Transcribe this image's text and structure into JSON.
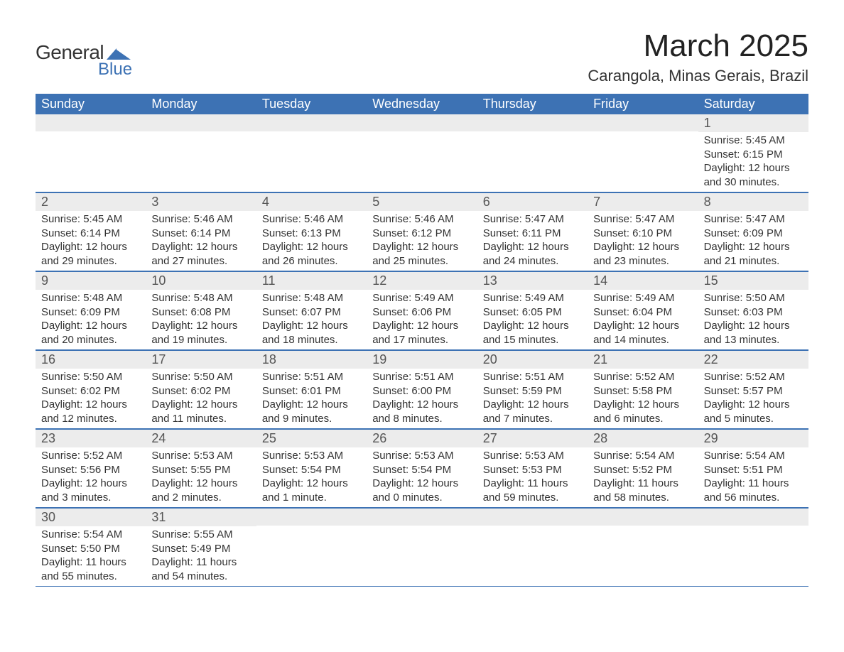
{
  "logo": {
    "main": "General",
    "sub": "Blue",
    "shape_color": "#3d72b4"
  },
  "month_title": "March 2025",
  "location": "Carangola, Minas Gerais, Brazil",
  "header_bg": "#3d72b4",
  "header_fg": "#ffffff",
  "daynum_bg": "#ececec",
  "border_color": "#3d72b4",
  "text_color": "#333333",
  "dow": [
    "Sunday",
    "Monday",
    "Tuesday",
    "Wednesday",
    "Thursday",
    "Friday",
    "Saturday"
  ],
  "weeks": [
    [
      {
        "day": "",
        "sunrise": "",
        "sunset": "",
        "daylight1": "",
        "daylight2": ""
      },
      {
        "day": "",
        "sunrise": "",
        "sunset": "",
        "daylight1": "",
        "daylight2": ""
      },
      {
        "day": "",
        "sunrise": "",
        "sunset": "",
        "daylight1": "",
        "daylight2": ""
      },
      {
        "day": "",
        "sunrise": "",
        "sunset": "",
        "daylight1": "",
        "daylight2": ""
      },
      {
        "day": "",
        "sunrise": "",
        "sunset": "",
        "daylight1": "",
        "daylight2": ""
      },
      {
        "day": "",
        "sunrise": "",
        "sunset": "",
        "daylight1": "",
        "daylight2": ""
      },
      {
        "day": "1",
        "sunrise": "Sunrise: 5:45 AM",
        "sunset": "Sunset: 6:15 PM",
        "daylight1": "Daylight: 12 hours",
        "daylight2": "and 30 minutes."
      }
    ],
    [
      {
        "day": "2",
        "sunrise": "Sunrise: 5:45 AM",
        "sunset": "Sunset: 6:14 PM",
        "daylight1": "Daylight: 12 hours",
        "daylight2": "and 29 minutes."
      },
      {
        "day": "3",
        "sunrise": "Sunrise: 5:46 AM",
        "sunset": "Sunset: 6:14 PM",
        "daylight1": "Daylight: 12 hours",
        "daylight2": "and 27 minutes."
      },
      {
        "day": "4",
        "sunrise": "Sunrise: 5:46 AM",
        "sunset": "Sunset: 6:13 PM",
        "daylight1": "Daylight: 12 hours",
        "daylight2": "and 26 minutes."
      },
      {
        "day": "5",
        "sunrise": "Sunrise: 5:46 AM",
        "sunset": "Sunset: 6:12 PM",
        "daylight1": "Daylight: 12 hours",
        "daylight2": "and 25 minutes."
      },
      {
        "day": "6",
        "sunrise": "Sunrise: 5:47 AM",
        "sunset": "Sunset: 6:11 PM",
        "daylight1": "Daylight: 12 hours",
        "daylight2": "and 24 minutes."
      },
      {
        "day": "7",
        "sunrise": "Sunrise: 5:47 AM",
        "sunset": "Sunset: 6:10 PM",
        "daylight1": "Daylight: 12 hours",
        "daylight2": "and 23 minutes."
      },
      {
        "day": "8",
        "sunrise": "Sunrise: 5:47 AM",
        "sunset": "Sunset: 6:09 PM",
        "daylight1": "Daylight: 12 hours",
        "daylight2": "and 21 minutes."
      }
    ],
    [
      {
        "day": "9",
        "sunrise": "Sunrise: 5:48 AM",
        "sunset": "Sunset: 6:09 PM",
        "daylight1": "Daylight: 12 hours",
        "daylight2": "and 20 minutes."
      },
      {
        "day": "10",
        "sunrise": "Sunrise: 5:48 AM",
        "sunset": "Sunset: 6:08 PM",
        "daylight1": "Daylight: 12 hours",
        "daylight2": "and 19 minutes."
      },
      {
        "day": "11",
        "sunrise": "Sunrise: 5:48 AM",
        "sunset": "Sunset: 6:07 PM",
        "daylight1": "Daylight: 12 hours",
        "daylight2": "and 18 minutes."
      },
      {
        "day": "12",
        "sunrise": "Sunrise: 5:49 AM",
        "sunset": "Sunset: 6:06 PM",
        "daylight1": "Daylight: 12 hours",
        "daylight2": "and 17 minutes."
      },
      {
        "day": "13",
        "sunrise": "Sunrise: 5:49 AM",
        "sunset": "Sunset: 6:05 PM",
        "daylight1": "Daylight: 12 hours",
        "daylight2": "and 15 minutes."
      },
      {
        "day": "14",
        "sunrise": "Sunrise: 5:49 AM",
        "sunset": "Sunset: 6:04 PM",
        "daylight1": "Daylight: 12 hours",
        "daylight2": "and 14 minutes."
      },
      {
        "day": "15",
        "sunrise": "Sunrise: 5:50 AM",
        "sunset": "Sunset: 6:03 PM",
        "daylight1": "Daylight: 12 hours",
        "daylight2": "and 13 minutes."
      }
    ],
    [
      {
        "day": "16",
        "sunrise": "Sunrise: 5:50 AM",
        "sunset": "Sunset: 6:02 PM",
        "daylight1": "Daylight: 12 hours",
        "daylight2": "and 12 minutes."
      },
      {
        "day": "17",
        "sunrise": "Sunrise: 5:50 AM",
        "sunset": "Sunset: 6:02 PM",
        "daylight1": "Daylight: 12 hours",
        "daylight2": "and 11 minutes."
      },
      {
        "day": "18",
        "sunrise": "Sunrise: 5:51 AM",
        "sunset": "Sunset: 6:01 PM",
        "daylight1": "Daylight: 12 hours",
        "daylight2": "and 9 minutes."
      },
      {
        "day": "19",
        "sunrise": "Sunrise: 5:51 AM",
        "sunset": "Sunset: 6:00 PM",
        "daylight1": "Daylight: 12 hours",
        "daylight2": "and 8 minutes."
      },
      {
        "day": "20",
        "sunrise": "Sunrise: 5:51 AM",
        "sunset": "Sunset: 5:59 PM",
        "daylight1": "Daylight: 12 hours",
        "daylight2": "and 7 minutes."
      },
      {
        "day": "21",
        "sunrise": "Sunrise: 5:52 AM",
        "sunset": "Sunset: 5:58 PM",
        "daylight1": "Daylight: 12 hours",
        "daylight2": "and 6 minutes."
      },
      {
        "day": "22",
        "sunrise": "Sunrise: 5:52 AM",
        "sunset": "Sunset: 5:57 PM",
        "daylight1": "Daylight: 12 hours",
        "daylight2": "and 5 minutes."
      }
    ],
    [
      {
        "day": "23",
        "sunrise": "Sunrise: 5:52 AM",
        "sunset": "Sunset: 5:56 PM",
        "daylight1": "Daylight: 12 hours",
        "daylight2": "and 3 minutes."
      },
      {
        "day": "24",
        "sunrise": "Sunrise: 5:53 AM",
        "sunset": "Sunset: 5:55 PM",
        "daylight1": "Daylight: 12 hours",
        "daylight2": "and 2 minutes."
      },
      {
        "day": "25",
        "sunrise": "Sunrise: 5:53 AM",
        "sunset": "Sunset: 5:54 PM",
        "daylight1": "Daylight: 12 hours",
        "daylight2": "and 1 minute."
      },
      {
        "day": "26",
        "sunrise": "Sunrise: 5:53 AM",
        "sunset": "Sunset: 5:54 PM",
        "daylight1": "Daylight: 12 hours",
        "daylight2": "and 0 minutes."
      },
      {
        "day": "27",
        "sunrise": "Sunrise: 5:53 AM",
        "sunset": "Sunset: 5:53 PM",
        "daylight1": "Daylight: 11 hours",
        "daylight2": "and 59 minutes."
      },
      {
        "day": "28",
        "sunrise": "Sunrise: 5:54 AM",
        "sunset": "Sunset: 5:52 PM",
        "daylight1": "Daylight: 11 hours",
        "daylight2": "and 58 minutes."
      },
      {
        "day": "29",
        "sunrise": "Sunrise: 5:54 AM",
        "sunset": "Sunset: 5:51 PM",
        "daylight1": "Daylight: 11 hours",
        "daylight2": "and 56 minutes."
      }
    ],
    [
      {
        "day": "30",
        "sunrise": "Sunrise: 5:54 AM",
        "sunset": "Sunset: 5:50 PM",
        "daylight1": "Daylight: 11 hours",
        "daylight2": "and 55 minutes."
      },
      {
        "day": "31",
        "sunrise": "Sunrise: 5:55 AM",
        "sunset": "Sunset: 5:49 PM",
        "daylight1": "Daylight: 11 hours",
        "daylight2": "and 54 minutes."
      },
      {
        "day": "",
        "sunrise": "",
        "sunset": "",
        "daylight1": "",
        "daylight2": ""
      },
      {
        "day": "",
        "sunrise": "",
        "sunset": "",
        "daylight1": "",
        "daylight2": ""
      },
      {
        "day": "",
        "sunrise": "",
        "sunset": "",
        "daylight1": "",
        "daylight2": ""
      },
      {
        "day": "",
        "sunrise": "",
        "sunset": "",
        "daylight1": "",
        "daylight2": ""
      },
      {
        "day": "",
        "sunrise": "",
        "sunset": "",
        "daylight1": "",
        "daylight2": ""
      }
    ]
  ]
}
